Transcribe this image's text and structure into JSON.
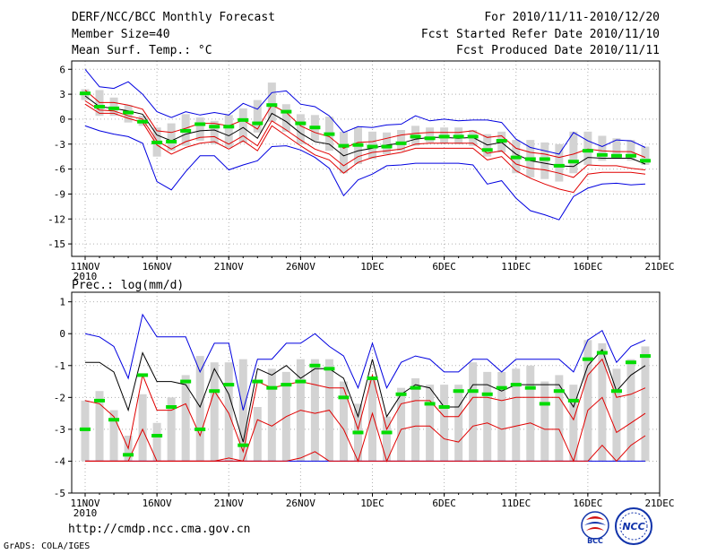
{
  "header": {
    "title": "DERF/NCC/BCC Monthly Forecast",
    "member_size": "Member Size=40",
    "variable": "Mean Surf. Temp.: °C",
    "forecast_period": "For 2010/11/11-2010/12/20",
    "start_refer": "Fcst Started Refer Date 2010/11/10",
    "produced": "Fcst Produced Date 2010/11/11"
  },
  "footer": {
    "url": "http://cmdp.ncc.cma.gov.cn",
    "credit": "GrADS: COLA/IGES",
    "logos": [
      {
        "name": "BCC",
        "label": "BCC"
      },
      {
        "name": "NCC",
        "label": "NCC"
      }
    ]
  },
  "colors": {
    "box": "#d3d3d3",
    "median": "#00dc00",
    "envelope": "#0000e0",
    "band": "#e00000",
    "mean": "#000000",
    "grid": "#b0b0b0"
  },
  "x_axis": {
    "year_label": "2010",
    "ticks": [
      {
        "day": 0,
        "label": "11NOV"
      },
      {
        "day": 5,
        "label": "16NOV"
      },
      {
        "day": 10,
        "label": "21NOV"
      },
      {
        "day": 15,
        "label": "26NOV"
      },
      {
        "day": 20,
        "label": "1DEC"
      },
      {
        "day": 25,
        "label": "6DEC"
      },
      {
        "day": 30,
        "label": "11DEC"
      },
      {
        "day": 35,
        "label": "16DEC"
      },
      {
        "day": 40,
        "label": "21DEC"
      }
    ]
  },
  "chart_data": [
    {
      "type": "boxplot",
      "title": "Mean Surf. Temp.: °C",
      "xlabel": "",
      "ylabel": "°C",
      "x_days": [
        0,
        1,
        2,
        3,
        4,
        5,
        6,
        7,
        8,
        9,
        10,
        11,
        12,
        13,
        14,
        15,
        16,
        17,
        18,
        19,
        20,
        21,
        22,
        23,
        24,
        25,
        26,
        27,
        28,
        29,
        30,
        31,
        32,
        33,
        34,
        35,
        36,
        37,
        38,
        39
      ],
      "ylim": [
        -16.5,
        7
      ],
      "yticks": [
        6,
        3,
        0,
        -3,
        -6,
        -9,
        -12,
        -15
      ],
      "box_low": [
        2.3,
        0.4,
        0.4,
        -0.4,
        -0.8,
        -4.5,
        -3.8,
        -3.2,
        -2.6,
        -3.0,
        -3.4,
        -2.8,
        -1.6,
        -0.3,
        -1.5,
        -3.0,
        -2.6,
        -3.8,
        -6.5,
        -5.4,
        -4.8,
        -4.2,
        -3.8,
        -3.2,
        -2.8,
        -2.9,
        -3.0,
        -3.2,
        -4.5,
        -4.0,
        -6.5,
        -7.0,
        -7.2,
        -7.5,
        -6.5,
        -5.5,
        -5.0,
        -4.8,
        -5.0,
        -5.5
      ],
      "box_high": [
        3.6,
        3.5,
        2.6,
        1.7,
        0.4,
        -1.0,
        -0.5,
        0.6,
        0.2,
        -0.2,
        0.5,
        1.3,
        2.3,
        4.4,
        1.8,
        0.6,
        0.5,
        0.3,
        -1.5,
        -1.0,
        -1.5,
        -1.6,
        -1.3,
        -0.8,
        -1.0,
        -1.0,
        -1.0,
        -1.3,
        -1.8,
        -1.5,
        -2.5,
        -2.5,
        -2.8,
        -3.0,
        -1.5,
        -1.5,
        -2.0,
        -2.3,
        -2.5,
        -3.3
      ],
      "median": [
        3.1,
        1.5,
        1.3,
        0.8,
        -0.3,
        -2.8,
        -2.7,
        -1.4,
        -0.6,
        -0.9,
        -0.9,
        -0.1,
        -0.5,
        1.7,
        0.9,
        -0.5,
        -1.0,
        -1.8,
        -3.2,
        -3.1,
        -3.3,
        -3.3,
        -2.9,
        -2.1,
        -2.3,
        -2.1,
        -2.1,
        -2.1,
        -3.7,
        -2.6,
        -4.6,
        -4.8,
        -4.8,
        -5.6,
        -5.1,
        -3.8,
        -4.3,
        -4.4,
        -4.4,
        -5.0
      ],
      "mean": [
        2.8,
        1.5,
        1.3,
        1.0,
        0.6,
        -1.9,
        -2.6,
        -1.8,
        -1.4,
        -1.3,
        -2.0,
        -1.0,
        -2.3,
        0.7,
        -0.3,
        -1.7,
        -2.7,
        -3.0,
        -4.4,
        -3.8,
        -3.5,
        -3.1,
        -2.9,
        -2.4,
        -2.2,
        -2.2,
        -2.3,
        -2.2,
        -3.1,
        -2.8,
        -4.2,
        -5.0,
        -5.3,
        -5.6,
        -5.7,
        -4.6,
        -4.7,
        -4.7,
        -4.7,
        -5.4
      ],
      "band_upper": [
        3.5,
        2.0,
        2.0,
        1.7,
        1.2,
        -1.4,
        -1.6,
        -1.1,
        -0.5,
        -0.5,
        -0.8,
        -0.1,
        -1.2,
        1.7,
        0.8,
        -0.8,
        -1.6,
        -2.1,
        -3.5,
        -2.8,
        -2.7,
        -2.3,
        -1.9,
        -1.7,
        -1.6,
        -1.6,
        -1.6,
        -1.4,
        -2.2,
        -2.0,
        -3.5,
        -4.0,
        -4.2,
        -4.6,
        -4.2,
        -3.6,
        -3.8,
        -3.9,
        -3.9,
        -4.6
      ],
      "band_lower": [
        2.2,
        1.1,
        1.0,
        0.4,
        0.0,
        -2.6,
        -3.6,
        -2.7,
        -2.2,
        -2.1,
        -3.0,
        -2.0,
        -3.2,
        -0.2,
        -1.3,
        -2.5,
        -3.6,
        -4.2,
        -5.6,
        -4.5,
        -4.0,
        -3.8,
        -3.6,
        -3.0,
        -2.9,
        -2.9,
        -2.9,
        -2.9,
        -4.1,
        -3.8,
        -5.4,
        -5.9,
        -6.1,
        -6.5,
        -7.0,
        -5.5,
        -5.6,
        -5.6,
        -5.9,
        -6.1
      ],
      "band_outer_lower": [
        1.8,
        0.7,
        0.7,
        0.1,
        -0.4,
        -3.1,
        -4.2,
        -3.4,
        -2.9,
        -2.7,
        -3.6,
        -2.6,
        -3.8,
        -0.8,
        -2.0,
        -3.2,
        -4.3,
        -4.9,
        -6.5,
        -5.2,
        -4.6,
        -4.3,
        -4.0,
        -3.5,
        -3.5,
        -3.5,
        -3.5,
        -3.5,
        -4.9,
        -4.5,
        -6.2,
        -7.1,
        -7.8,
        -8.4,
        -8.8,
        -6.6,
        -6.4,
        -6.4,
        -6.4,
        -6.6
      ],
      "envelope_max": [
        6.0,
        3.9,
        3.7,
        4.5,
        3.0,
        0.9,
        0.2,
        0.9,
        0.5,
        0.8,
        0.5,
        1.9,
        1.2,
        3.2,
        3.4,
        1.8,
        1.5,
        0.4,
        -1.6,
        -0.9,
        -1.0,
        -0.7,
        -0.6,
        0.4,
        -0.2,
        0.0,
        -0.2,
        -0.1,
        -0.1,
        -0.4,
        -2.4,
        -3.4,
        -3.8,
        -4.2,
        -1.6,
        -2.6,
        -3.3,
        -2.5,
        -2.6,
        -3.4
      ],
      "envelope_min": [
        -0.8,
        -1.4,
        -1.8,
        -2.1,
        -2.9,
        -7.5,
        -8.5,
        -6.3,
        -4.4,
        -4.4,
        -6.1,
        -5.5,
        -5.0,
        -3.3,
        -3.2,
        -3.7,
        -4.6,
        -5.9,
        -9.2,
        -7.3,
        -6.6,
        -5.6,
        -5.5,
        -5.3,
        -5.3,
        -5.3,
        -5.3,
        -5.5,
        -7.8,
        -7.4,
        -9.5,
        -11.0,
        -11.5,
        -12.1,
        -9.3,
        -8.3,
        -7.8,
        -7.7,
        -7.9,
        -7.8
      ]
    },
    {
      "type": "boxplot",
      "title": "Prec.: log(mm/d)",
      "xlabel": "",
      "ylabel": "log(mm/d)",
      "x_days": [
        0,
        1,
        2,
        3,
        4,
        5,
        6,
        7,
        8,
        9,
        10,
        11,
        12,
        13,
        14,
        15,
        16,
        17,
        18,
        19,
        20,
        21,
        22,
        23,
        24,
        25,
        26,
        27,
        28,
        29,
        30,
        31,
        32,
        33,
        34,
        35,
        36,
        37,
        38,
        39
      ],
      "ylim": [
        -5,
        1.3
      ],
      "yticks": [
        1,
        0,
        -1,
        -2,
        -3,
        -4,
        -5
      ],
      "box_low": [
        -4,
        -4,
        -4,
        -4,
        -4,
        -4,
        -4,
        -4,
        -4,
        -4,
        -4,
        -4,
        -4,
        -4,
        -4,
        -4,
        -4,
        -4,
        -4,
        -4,
        -4,
        -4,
        -4,
        -4,
        -4,
        -4,
        -4,
        -4,
        -4,
        -4,
        -4,
        -4,
        -4,
        -4,
        -4,
        -4,
        -4,
        -4,
        -4,
        -4
      ],
      "box_high": [
        -2.1,
        -1.8,
        -2.4,
        -3.2,
        -1.9,
        -2.8,
        -2.0,
        -1.3,
        -0.7,
        -0.9,
        -0.9,
        -0.8,
        -2.3,
        -1.1,
        -1.2,
        -0.8,
        -0.8,
        -0.8,
        -1.5,
        -2.2,
        -1.4,
        -2.6,
        -1.7,
        -1.4,
        -1.6,
        -1.6,
        -1.6,
        -0.9,
        -1.2,
        -1.2,
        -1.1,
        -1.0,
        -1.5,
        -1.3,
        -1.6,
        -0.2,
        -0.3,
        -1.1,
        -0.8,
        -0.4
      ],
      "median": [
        -3.0,
        -2.1,
        -2.7,
        -3.8,
        -1.3,
        -3.2,
        -2.3,
        -1.5,
        -3.0,
        -1.8,
        -1.6,
        -3.5,
        -1.5,
        -1.7,
        -1.6,
        -1.5,
        -1.0,
        -1.1,
        -2.0,
        -3.1,
        -1.4,
        -3.1,
        -1.9,
        -1.7,
        -2.2,
        -2.3,
        -1.8,
        -1.8,
        -1.9,
        -1.7,
        -1.6,
        -1.7,
        -2.2,
        -1.8,
        -2.1,
        -0.8,
        -0.6,
        -1.8,
        -0.9,
        -0.7
      ],
      "mean": [
        -0.9,
        -0.9,
        -1.2,
        -2.4,
        -0.6,
        -1.5,
        -1.5,
        -1.6,
        -2.3,
        -1.1,
        -1.9,
        -3.4,
        -1.1,
        -1.3,
        -1.0,
        -1.4,
        -1.1,
        -1.1,
        -1.4,
        -2.6,
        -0.8,
        -2.6,
        -1.9,
        -1.6,
        -1.7,
        -2.3,
        -2.3,
        -1.6,
        -1.6,
        -1.8,
        -1.6,
        -1.6,
        -1.6,
        -1.6,
        -2.3,
        -1.0,
        -0.5,
        -1.8,
        -1.3,
        -1.0
      ],
      "band_upper": [
        -2.1,
        -2.2,
        -2.6,
        -3.6,
        -1.3,
        -2.4,
        -2.4,
        -2.2,
        -3.2,
        -1.8,
        -2.5,
        -3.7,
        -1.5,
        -1.7,
        -1.6,
        -1.5,
        -1.6,
        -1.7,
        -1.7,
        -3.0,
        -1.3,
        -3.0,
        -2.2,
        -2.1,
        -2.1,
        -2.6,
        -2.6,
        -2.0,
        -2.0,
        -2.1,
        -2.0,
        -2.0,
        -2.0,
        -2.0,
        -2.7,
        -1.3,
        -0.8,
        -2.0,
        -1.9,
        -1.7
      ],
      "band_lower": [
        -4.0,
        -4.0,
        -4.0,
        -4.0,
        -3.0,
        -4.0,
        -4.0,
        -4.0,
        -4.0,
        -4.0,
        -4.0,
        -4.0,
        -2.7,
        -2.9,
        -2.6,
        -2.4,
        -2.5,
        -2.4,
        -3.0,
        -4.0,
        -2.5,
        -4.0,
        -3.0,
        -2.9,
        -2.9,
        -3.3,
        -3.4,
        -2.9,
        -2.8,
        -3.0,
        -2.9,
        -2.8,
        -3.0,
        -3.0,
        -4.0,
        -2.4,
        -2.0,
        -3.1,
        -2.8,
        -2.5
      ],
      "band_outer_lower": [
        -4.0,
        -4.0,
        -4.0,
        -4.0,
        -4.0,
        -4.0,
        -4.0,
        -4.0,
        -4.0,
        -4.0,
        -3.9,
        -4.0,
        -4.0,
        -4.0,
        -4.0,
        -3.9,
        -3.7,
        -4.0,
        -4.0,
        -4.0,
        -4.0,
        -4.0,
        -4.0,
        -4.0,
        -4.0,
        -4.0,
        -4.0,
        -4.0,
        -4.0,
        -4.0,
        -4.0,
        -4.0,
        -4.0,
        -4.0,
        -4.0,
        -4.0,
        -3.5,
        -4.0,
        -3.5,
        -3.2
      ],
      "envelope_max": [
        0.0,
        -0.1,
        -0.4,
        -1.4,
        0.6,
        -0.1,
        -0.1,
        -0.1,
        -1.2,
        -0.3,
        -0.3,
        -2.4,
        -0.8,
        -0.8,
        -0.3,
        -0.3,
        0.0,
        -0.4,
        -0.7,
        -1.7,
        -0.3,
        -1.7,
        -0.9,
        -0.7,
        -0.8,
        -1.2,
        -1.2,
        -0.8,
        -0.8,
        -1.2,
        -0.8,
        -0.8,
        -0.8,
        -0.8,
        -1.2,
        -0.2,
        0.1,
        -0.9,
        -0.4,
        -0.2
      ],
      "envelope_min": [
        -4,
        -4,
        -4,
        -4,
        -4,
        -4,
        -4,
        -4,
        -4,
        -4,
        -4,
        -4,
        -4,
        -4,
        -4,
        -4,
        -4,
        -4,
        -4,
        -4,
        -4,
        -4,
        -4,
        -4,
        -4,
        -4,
        -4,
        -4,
        -4,
        -4,
        -4,
        -4,
        -4,
        -4,
        -4,
        -4,
        -4,
        -4,
        -4,
        -4
      ]
    }
  ]
}
